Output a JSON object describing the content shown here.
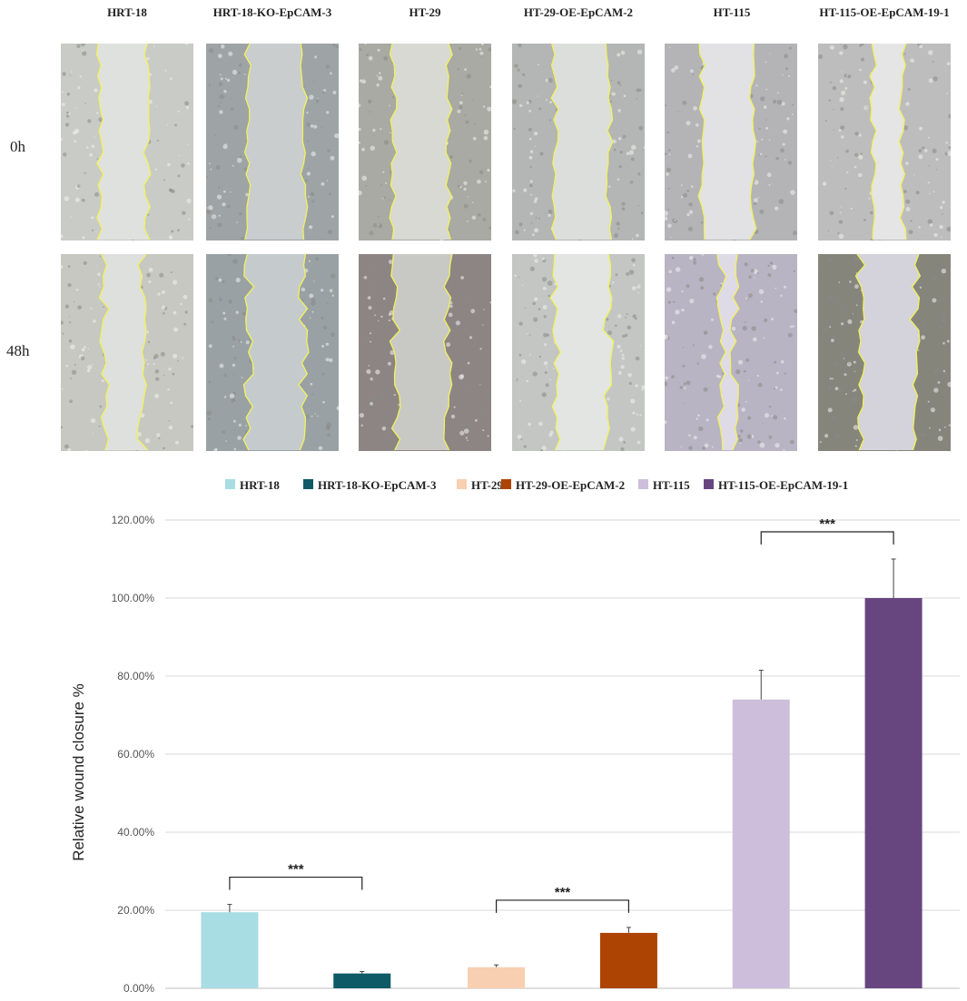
{
  "figure": {
    "columns": [
      "HRT-18",
      "HRT-18-KO-EpCAM-3",
      "HT-29",
      "HT-29-OE-EpCAM-2",
      "HT-115",
      "HT-115-OE-EpCAM-19-1"
    ],
    "rows": [
      "0h",
      "48h"
    ]
  },
  "chart_data": {
    "type": "bar",
    "categories": [
      "HRT-18",
      "HRT-18-KO-EpCAM-3",
      "HT-29",
      "HT-29-OE-EpCAM-2",
      "HT-115",
      "HT-115-OE-EpCAM-19-1"
    ],
    "values": [
      19.5,
      3.8,
      5.4,
      14.2,
      74.0,
      100.0
    ],
    "errors": [
      2.0,
      0.5,
      0.6,
      1.4,
      7.5,
      10.0
    ],
    "colors": [
      "#a8dde3",
      "#0e5a66",
      "#f8cfb0",
      "#ad4404",
      "#cdbfdb",
      "#674680"
    ],
    "ylabel": "Relative wound closure %",
    "ylim": [
      0,
      120
    ],
    "yticks": [
      "0.00%",
      "20.00%",
      "40.00%",
      "60.00%",
      "80.00%",
      "100.00%",
      "120.00%"
    ],
    "grid": true,
    "legend_position": "top",
    "significance": [
      {
        "pair": [
          0,
          1
        ],
        "label": "***"
      },
      {
        "pair": [
          2,
          3
        ],
        "label": "***"
      },
      {
        "pair": [
          4,
          5
        ],
        "label": "***"
      }
    ]
  }
}
